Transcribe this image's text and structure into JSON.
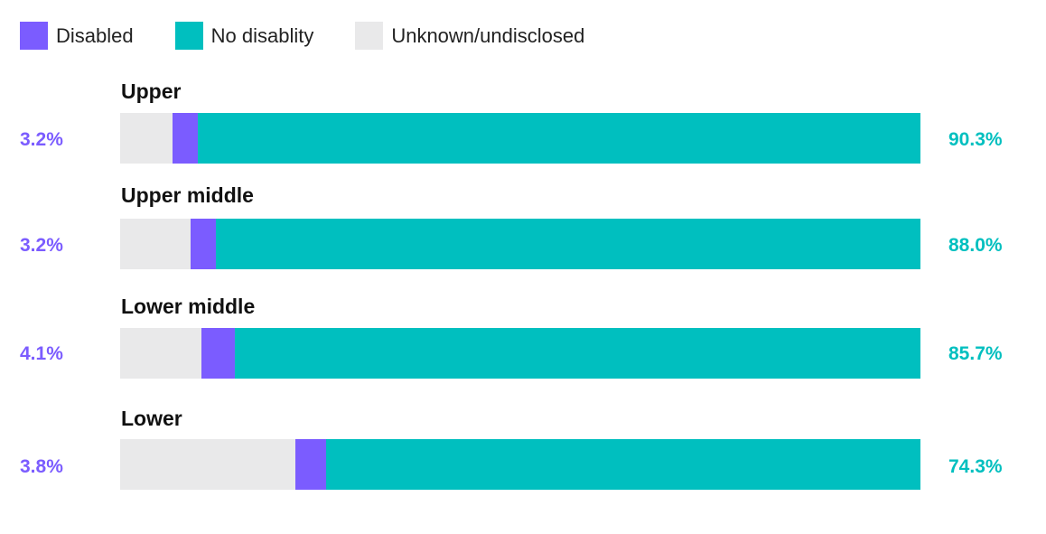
{
  "colors": {
    "disabled": "#7b5cff",
    "no_disability": "#00bfbf",
    "unknown": "#e9e9ea"
  },
  "legend": [
    {
      "key": "disabled",
      "label": "Disabled"
    },
    {
      "key": "no_disability",
      "label": "No disablity"
    },
    {
      "key": "unknown",
      "label": "Unknown/undisclosed"
    }
  ],
  "chart_data": {
    "type": "bar",
    "orientation": "horizontal",
    "stacked": true,
    "categories": [
      "Upper",
      "Upper middle",
      "Lower middle",
      "Lower"
    ],
    "series": [
      {
        "name": "Unknown/undisclosed",
        "values": [
          6.5,
          8.8,
          10.2,
          21.9
        ]
      },
      {
        "name": "Disabled",
        "values": [
          3.2,
          3.2,
          4.1,
          3.8
        ]
      },
      {
        "name": "No disablity",
        "values": [
          90.3,
          88.0,
          85.7,
          74.3
        ]
      }
    ],
    "xlim": [
      0,
      100
    ],
    "grid": false,
    "legend_position": "top-left"
  },
  "rows": [
    {
      "title": "Upper",
      "disabled_label": "3.2%",
      "no_disability_label": "90.3%"
    },
    {
      "title": "Upper middle",
      "disabled_label": "3.2%",
      "no_disability_label": "88.0%"
    },
    {
      "title": "Lower middle",
      "disabled_label": "4.1%",
      "no_disability_label": "85.7%"
    },
    {
      "title": "Lower",
      "disabled_label": "3.8%",
      "no_disability_label": "74.3%"
    }
  ]
}
